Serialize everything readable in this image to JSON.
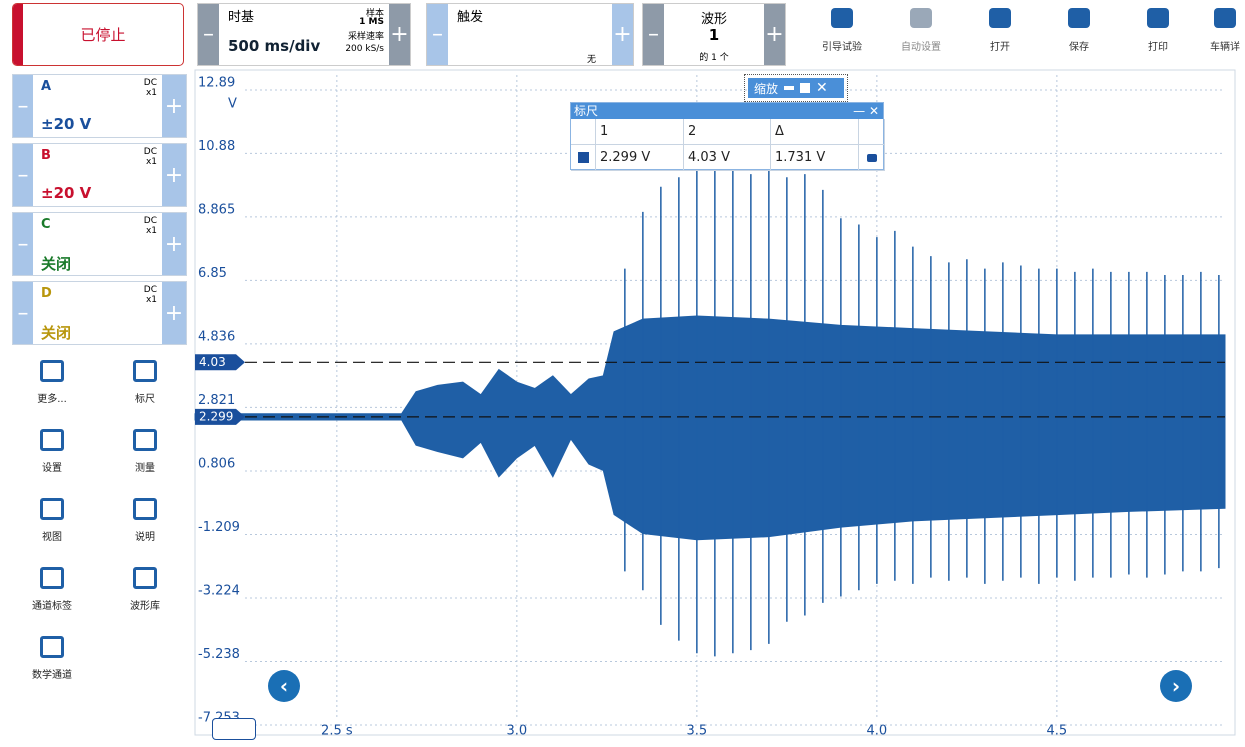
{
  "toolbar": {
    "status": "已停止",
    "timebase": {
      "label": "时基",
      "value": "500 ms/div",
      "samples_label": "样本",
      "samples": "1 MS",
      "rate_label": "采样速率",
      "rate": "200 kS/s"
    },
    "trigger": {
      "label": "触发",
      "mode": "无"
    },
    "waveform": {
      "label": "波形",
      "index": "1",
      "count": "的 1 个"
    },
    "buttons": [
      "引导试验",
      "自动设置",
      "打开",
      "保存",
      "打印",
      "车辆详"
    ]
  },
  "channels": [
    {
      "name": "A",
      "coupling": "DC",
      "probe": "x1",
      "range": "±20 V",
      "color": "#1a4f9c"
    },
    {
      "name": "B",
      "coupling": "DC",
      "probe": "x1",
      "range": "±20 V",
      "color": "#c8102e"
    },
    {
      "name": "C",
      "coupling": "DC",
      "probe": "x1",
      "range": "关闭",
      "color": "#1a7a2a"
    },
    {
      "name": "D",
      "coupling": "DC",
      "probe": "x1",
      "range": "关闭",
      "color": "#b8960c"
    }
  ],
  "tools": [
    "更多...",
    "标尺",
    "设置",
    "测量",
    "视图",
    "说明",
    "通道标签",
    "波形库",
    "数学通道"
  ],
  "ruler": {
    "title": "标尺",
    "headers": [
      "1",
      "2",
      "Δ"
    ],
    "row": [
      "2.299 V",
      "4.03 V",
      "1.731 V"
    ]
  },
  "zoom": {
    "title": "缩放"
  },
  "chart_data": {
    "type": "waveform",
    "y_unit": "V",
    "color": "#1f5fa6",
    "ylim": [
      -7.253,
      12.89
    ],
    "yticks": [
      12.89,
      10.88,
      8.865,
      6.85,
      4.836,
      2.821,
      0.806,
      -1.209,
      -3.224,
      -5.238,
      -7.253
    ],
    "xlim": [
      2.106,
      4.967
    ],
    "xticks": [
      {
        "value": 2.5,
        "label": "2.5 s"
      },
      {
        "value": 3,
        "label": "3.0"
      },
      3.5,
      {
        "value": 4,
        "label": "4.0"
      },
      4.5
    ],
    "grid": true,
    "cursors": [
      4.03,
      2.299
    ],
    "envelope": {
      "t": [
        2.106,
        2.68,
        2.72,
        2.78,
        2.85,
        2.9,
        2.95,
        3.0,
        3.05,
        3.1,
        3.15,
        3.2,
        3.24,
        3.27,
        3.35,
        3.5,
        3.7,
        3.9,
        4.1,
        4.3,
        4.5,
        4.7,
        4.967
      ],
      "upper": [
        2.4,
        2.4,
        3.1,
        3.3,
        3.4,
        3.0,
        3.8,
        3.4,
        3.2,
        3.6,
        3.0,
        3.5,
        3.6,
        5.0,
        5.4,
        5.5,
        5.4,
        5.2,
        5.1,
        5.0,
        4.9,
        4.9,
        4.9
      ],
      "lower": [
        2.2,
        2.2,
        1.4,
        1.2,
        1.0,
        1.5,
        0.4,
        1.0,
        1.4,
        0.4,
        1.6,
        0.8,
        0.6,
        -0.8,
        -1.4,
        -1.6,
        -1.5,
        -1.2,
        -1.0,
        -0.9,
        -0.8,
        -0.7,
        -0.6
      ]
    },
    "spikes": {
      "t": [
        3.3,
        3.35,
        3.4,
        3.45,
        3.5,
        3.55,
        3.6,
        3.65,
        3.7,
        3.75,
        3.8,
        3.85,
        3.9,
        3.95,
        4.0,
        4.05,
        4.1,
        4.15,
        4.2,
        4.25,
        4.3,
        4.35,
        4.4,
        4.45,
        4.5,
        4.55,
        4.6,
        4.65,
        4.7,
        4.75,
        4.8,
        4.85,
        4.9,
        4.95
      ],
      "high": [
        7.0,
        8.8,
        9.6,
        9.9,
        10.1,
        10.2,
        10.1,
        10.0,
        10.2,
        9.9,
        10.0,
        9.5,
        8.6,
        8.4,
        8.0,
        8.2,
        7.7,
        7.4,
        7.2,
        7.3,
        7.0,
        7.2,
        7.1,
        7.0,
        7.0,
        6.9,
        7.0,
        6.9,
        6.9,
        6.9,
        6.8,
        6.8,
        6.9,
        6.8
      ],
      "low": [
        -2.6,
        -3.2,
        -4.3,
        -4.8,
        -5.2,
        -5.3,
        -5.2,
        -5.1,
        -4.9,
        -4.2,
        -4.0,
        -3.6,
        -3.4,
        -3.2,
        -3.0,
        -2.9,
        -3.0,
        -2.8,
        -2.9,
        -2.8,
        -3.0,
        -2.9,
        -2.8,
        -3.0,
        -2.8,
        -2.9,
        -2.8,
        -2.8,
        -2.7,
        -2.8,
        -2.7,
        -2.6,
        -2.6,
        -2.5
      ]
    }
  }
}
